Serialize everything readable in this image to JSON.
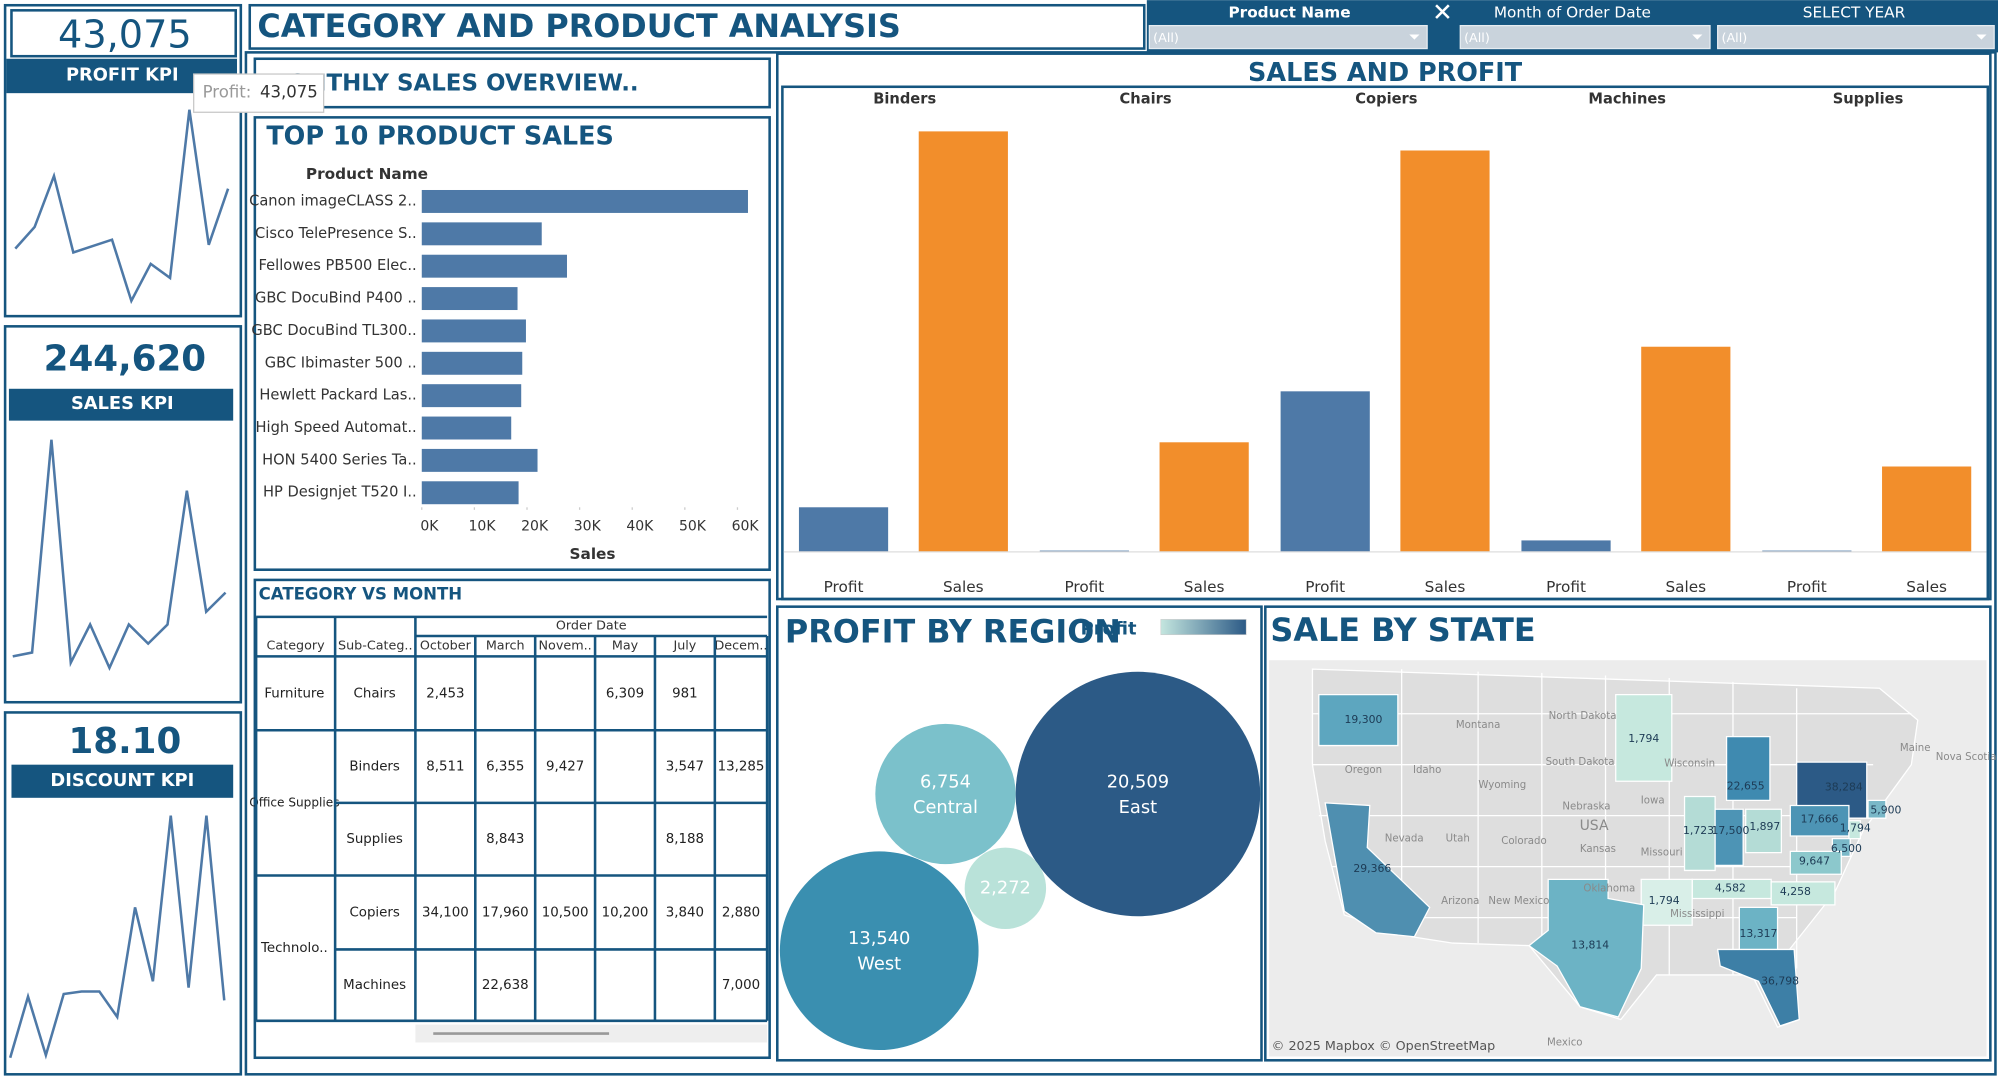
{
  "header": {
    "title": "CATEGORY AND PRODUCT ANALYSIS"
  },
  "filters": [
    {
      "label": "Product Name",
      "value": "(All)"
    },
    {
      "label": "Month of Order Date",
      "value": "(All)"
    },
    {
      "label": "SELECT YEAR",
      "value": "(All)"
    }
  ],
  "tooltip": {
    "label": "Profit:",
    "value": "43,075"
  },
  "kpis": [
    {
      "value": "43,075",
      "label": "PROFIT KPI",
      "trend": [
        55,
        72,
        112,
        52,
        57,
        62,
        14,
        43,
        32,
        164,
        58,
        102
      ]
    },
    {
      "value": "244,620",
      "label": "SALES KPI",
      "trend": [
        35,
        38,
        205,
        30,
        60,
        26,
        60,
        45,
        60,
        165,
        70,
        85
      ]
    },
    {
      "value": "18.10",
      "label": "DISCOUNT KPI",
      "trend": [
        20,
        68,
        22,
        70,
        72,
        72,
        52,
        138,
        80,
        210,
        75,
        210,
        65
      ]
    }
  ],
  "monthly_sales": {
    "title": "MONTHLY SALES OVERVIEW.."
  },
  "chart_data": [
    {
      "type": "bar",
      "orientation": "horizontal",
      "title": "TOP 10 PRODUCT SALES",
      "y_label": "Product Name",
      "x_label": "Sales",
      "categories": [
        "Canon imageCLASS 2..",
        "Cisco TelePresence S..",
        "Fellowes PB500 Elec..",
        "GBC DocuBind P400 ..",
        "GBC DocuBind TL300..",
        "GBC Ibimaster 500 ..",
        "Hewlett Packard Las..",
        "High Speed Automat..",
        "HON 5400 Series Ta..",
        "HP Designjet T520 I.."
      ],
      "values": [
        62000,
        22800,
        27600,
        18200,
        19800,
        19100,
        18900,
        17000,
        22000,
        18400
      ],
      "color": "#4e79a7",
      "xlim": [
        0,
        62000
      ],
      "xticks": [
        {
          "value": 0,
          "label": "0K"
        },
        {
          "value": 10000,
          "label": "10K"
        },
        {
          "value": 20000,
          "label": "20K"
        },
        {
          "value": 30000,
          "label": "30K"
        },
        {
          "value": 40000,
          "label": "40K"
        },
        {
          "value": 50000,
          "label": "50K"
        },
        {
          "value": 60000,
          "label": "60K"
        }
      ]
    },
    {
      "type": "grouped_bar",
      "title": "SALES AND PROFIT",
      "categories": [
        "Binders",
        "Chairs",
        "Copiers",
        "Machines",
        "Supplies"
      ],
      "series": [
        {
          "name": "Profit",
          "color": "#4e79a7",
          "values": [
            21000,
            600,
            75600,
            5400,
            600
          ]
        },
        {
          "name": "Sales",
          "color": "#f28e2b",
          "values": [
            198000,
            51600,
            189000,
            96600,
            40200
          ]
        }
      ]
    },
    {
      "type": "bubble",
      "title": "PROFIT BY REGION",
      "legend_title": "Profit",
      "legend_colors": [
        "#c4e6df",
        "#2c5a86"
      ],
      "categories": [
        "East",
        "West",
        "Central",
        null
      ],
      "values": [
        20509,
        13540,
        6754,
        2272
      ],
      "value_labels": [
        "20,509",
        "13,540",
        "6,754",
        "2,272"
      ],
      "colors": [
        "#2c5a86",
        "#3a8fb0",
        "#7bc1cb",
        "#b9e2d9"
      ]
    }
  ],
  "table": {
    "title": "CATEGORY VS MONTH",
    "column_group": "Order Date",
    "columns": [
      "Category",
      "Sub-Categ..",
      "October",
      "March",
      "Novem..",
      "May",
      "July",
      "Decem.."
    ],
    "rows": [
      {
        "category": "Furniture",
        "subcategory": "Chairs",
        "cells": [
          "2,453",
          null,
          null,
          "6,309",
          "981",
          null
        ]
      },
      {
        "category": "Office Supplies",
        "subcategory": "Binders",
        "cells": [
          "8,511",
          "6,355",
          "9,427",
          null,
          "3,547",
          "13,285"
        ]
      },
      {
        "category": null,
        "subcategory": "Supplies",
        "cells": [
          null,
          "8,843",
          null,
          null,
          "8,188",
          null
        ]
      },
      {
        "category": "Technolo..",
        "subcategory": "Copiers",
        "cells": [
          "34,100",
          "17,960",
          "10,500",
          "10,200",
          "3,840",
          "2,880"
        ]
      },
      {
        "category": null,
        "subcategory": "Machines",
        "cells": [
          null,
          "22,638",
          null,
          null,
          null,
          "7,000"
        ]
      }
    ]
  },
  "map": {
    "title": "SALE BY STATE",
    "states": [
      {
        "label": "19,300",
        "color": "#5da6bf"
      },
      {
        "label": "1,794",
        "color": "#c6e8de"
      },
      {
        "label": "22,655",
        "color": "#3f8ab0"
      },
      {
        "label": "38,284",
        "color": "#2c5a86"
      },
      {
        "label": "5,900",
        "color": "#7ab8c8"
      },
      {
        "label": "17,666",
        "color": "#4d94b5"
      },
      {
        "label": "1,794",
        "color": "#c6e8de"
      },
      {
        "label": "1,723",
        "color": "#b4dcd6"
      },
      {
        "label": "17,500",
        "color": "#4d94b5"
      },
      {
        "label": "1,897",
        "color": "#b4dcd6"
      },
      {
        "label": "6,500",
        "color": "#7ab8c8"
      },
      {
        "label": "9,647",
        "color": "#8cc8cc"
      },
      {
        "label": "29,366",
        "color": "#4f8fb0"
      },
      {
        "label": "4,582",
        "color": "#c6e8de"
      },
      {
        "label": "4,258",
        "color": "#c6e8de"
      },
      {
        "label": "1,794",
        "color": "#d9efe8"
      },
      {
        "label": "13,317",
        "color": "#6cb3c5"
      },
      {
        "label": "13,814",
        "color": "#6cb3c5"
      },
      {
        "label": "36,798",
        "color": "#3d7fa6"
      }
    ],
    "places": [
      "Montana",
      "North Dakota",
      "South Dakota",
      "Wyoming",
      "Oregon",
      "Idaho",
      "Nevada",
      "Utah",
      "Colorado",
      "Nebraska",
      "Kansas",
      "Iowa",
      "Wisconsin",
      "Missouri",
      "Oklahoma",
      "Arizona",
      "New Mexico",
      "USA",
      "Maine",
      "Nova Scotia",
      "Mississippi",
      "Mexico"
    ],
    "credit": "© 2025 Mapbox © OpenStreetMap"
  }
}
